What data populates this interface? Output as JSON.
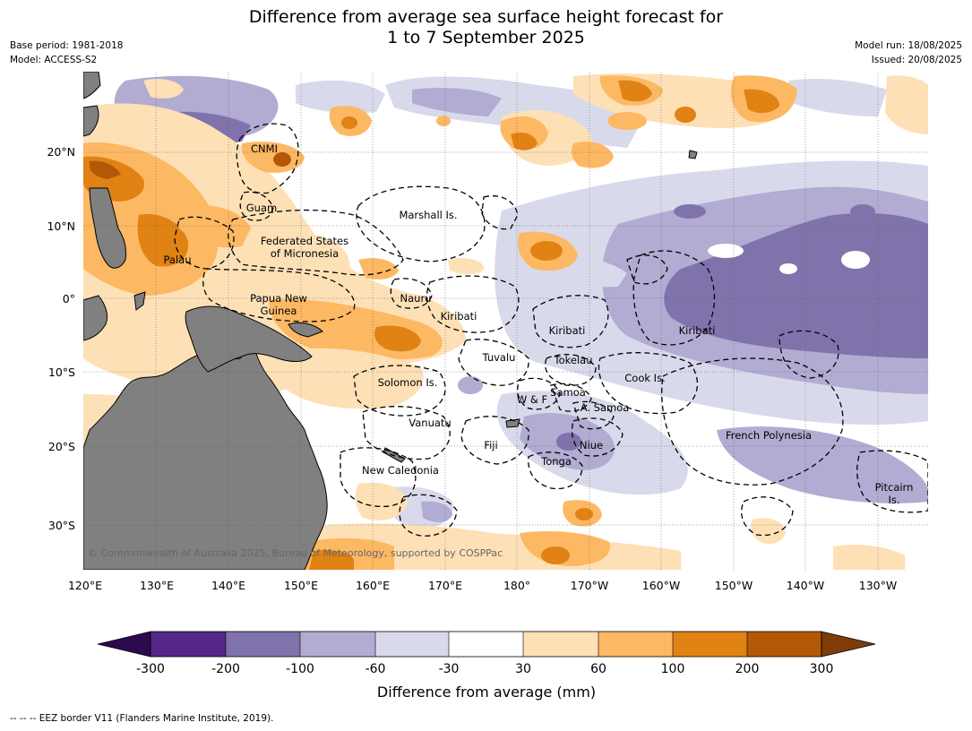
{
  "title": {
    "line1": "Difference from average sea surface height forecast for",
    "line2": "1 to 7 September 2025"
  },
  "meta_left": {
    "base_period": "Base period: 1981-2018",
    "model": "Model: ACCESS-S2"
  },
  "meta_right": {
    "model_run": "Model run: 18/08/2025",
    "issued": "Issued: 20/08/2025"
  },
  "copyright": "© Commonwealth of Australia 2025, Bureau of Meteorology, supported by COSPPac",
  "footer": "--  --  -- EEZ border V11 (Flanders Marine Institute, 2019).",
  "axes": {
    "lon_ticks": [
      "120°E",
      "130°E",
      "140°E",
      "150°E",
      "160°E",
      "170°E",
      "180°",
      "170°W",
      "160°W",
      "150°W",
      "140°W",
      "130°W"
    ],
    "lat_ticks": [
      "20°N",
      "10°N",
      "0°",
      "10°S",
      "20°S",
      "30°S"
    ]
  },
  "region_labels": [
    "CNMI",
    "Guam",
    "Marshall Is.",
    "Federated States",
    "of Micronesia",
    "Palau",
    "Papua New",
    "Guinea",
    "Nauru",
    "Kiribati",
    "Kiribati",
    "Kiribati",
    "Tuvalu",
    "Tokelau",
    "Solomon Is.",
    "Samoa",
    "W & F",
    "A. Samoa",
    "Cook Is.",
    "Vanuatu",
    "Fiji",
    "Niue",
    "Tonga",
    "French Polynesia",
    "New Caledonia",
    "Pitcairn",
    "Is."
  ],
  "colorbar": {
    "label": "Difference from average (mm)",
    "ticks": [
      "-300",
      "-200",
      "-100",
      "-60",
      "-30",
      "30",
      "60",
      "100",
      "200",
      "300"
    ],
    "colors": {
      "below_-300": "#2d0a4e",
      "-300_-200": "#542788",
      "-200_-100": "#8073ac",
      "-100_-60": "#b2abd2",
      "-60_-30": "#d8daeb",
      "-30_30": "#ffffff",
      "30_60": "#fee0b6",
      "60_100": "#fdb863",
      "100_200": "#e08214",
      "200_300": "#b35806",
      "above_300": "#7f3b08"
    }
  },
  "land_color": "#808080"
}
